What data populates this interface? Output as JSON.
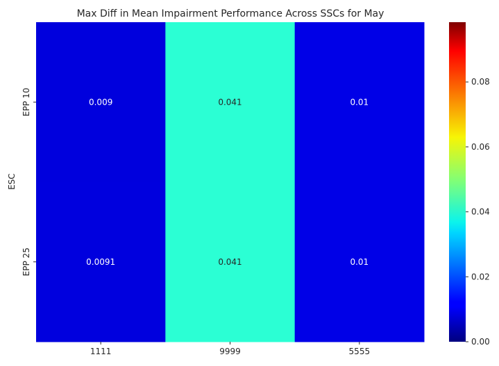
{
  "chart_data": {
    "type": "heatmap",
    "title": "Max Diff in Mean Impairment Performance Across SSCs for May",
    "xlabel": "",
    "ylabel": "ESC",
    "x_categories": [
      "1111",
      "9999",
      "5555"
    ],
    "y_categories": [
      "EPP 10",
      "EPP 25"
    ],
    "values": [
      [
        0.009,
        0.041,
        0.01
      ],
      [
        0.0091,
        0.041,
        0.01
      ]
    ],
    "annotations": [
      [
        "0.009",
        "0.041",
        "0.01"
      ],
      [
        "0.0091",
        "0.041",
        "0.01"
      ]
    ],
    "colormap": "jet",
    "vmin": 0,
    "vmax": 0.0984,
    "colorbar": {
      "ticks": [
        0,
        0.02,
        0.04,
        0.06,
        0.08
      ],
      "tick_labels": [
        "0.00",
        "0.02",
        "0.04",
        "0.06",
        "0.08"
      ]
    },
    "grid": false
  }
}
